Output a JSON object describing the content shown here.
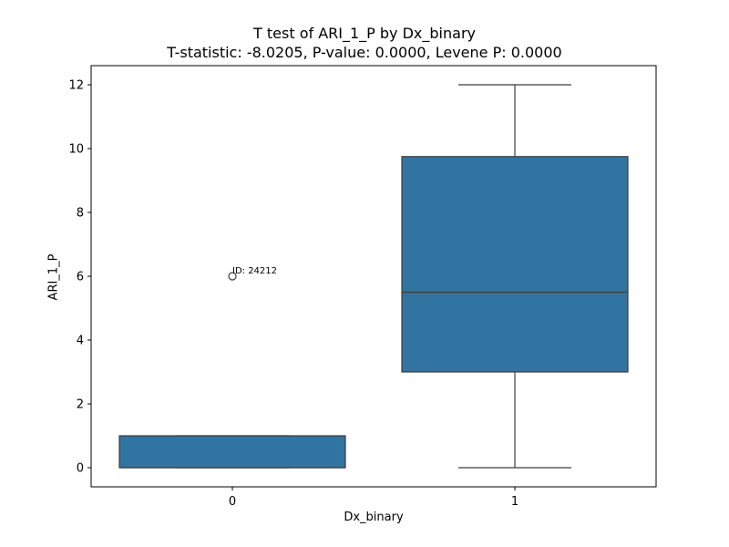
{
  "chart_data": {
    "type": "box",
    "title": "T test of ARI_1_P by Dx_binary",
    "subtitle": "T-statistic: -8.0205, P-value: 0.0000, Levene P: 0.0000",
    "xlabel": "Dx_binary",
    "ylabel": "ARI_1_P",
    "ylim": [
      -0.6,
      12.6
    ],
    "yticks": [
      0,
      2,
      4,
      6,
      8,
      10,
      12
    ],
    "grid": false,
    "color": "#3274a1",
    "categories": [
      "0",
      "1"
    ],
    "boxes": [
      {
        "category": "0",
        "whisker_low": 0,
        "q1": 0,
        "median": 0,
        "q3": 1,
        "whisker_high": 1,
        "outliers": [
          {
            "value": 6,
            "label": "ID: 24212"
          }
        ]
      },
      {
        "category": "1",
        "whisker_low": 0,
        "q1": 3,
        "median": 5.5,
        "q3": 9.75,
        "whisker_high": 12,
        "outliers": []
      }
    ]
  }
}
